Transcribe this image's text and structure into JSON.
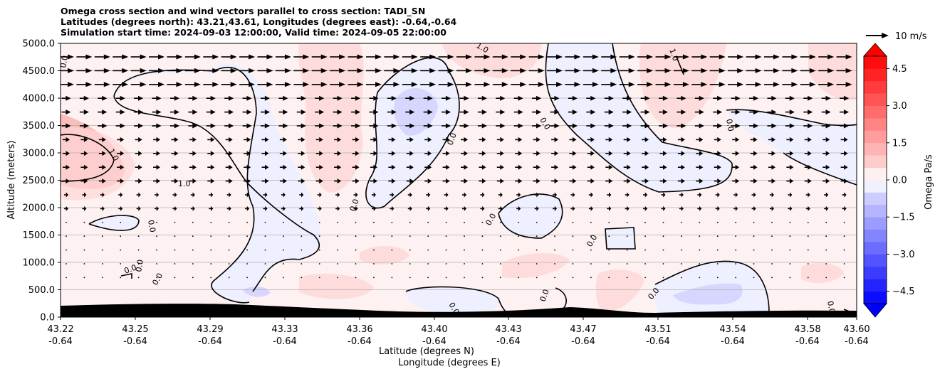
{
  "chart_data": {
    "type": "contour",
    "title_lines": [
      "Omega cross section and wind vectors parallel to cross section: TADI_SN",
      "Latitudes (degrees north): 43.21,43.61, Longitudes (degrees east): -0.64,-0.64",
      "Simulation start time: 2024-09-03 12:00:00, Valid time: 2024-09-05 22:00:00"
    ],
    "xlabel": "Latitude (degrees N)",
    "xlabel2": "Longitude (degrees E)",
    "ylabel": "Altitude (meters)",
    "x_ticks": [
      {
        "lat": "43.22",
        "lon": "-0.64"
      },
      {
        "lat": "43.25",
        "lon": "-0.64"
      },
      {
        "lat": "43.29",
        "lon": "-0.64"
      },
      {
        "lat": "43.33",
        "lon": "-0.64"
      },
      {
        "lat": "43.36",
        "lon": "-0.64"
      },
      {
        "lat": "43.40",
        "lon": "-0.64"
      },
      {
        "lat": "43.43",
        "lon": "-0.64"
      },
      {
        "lat": "43.47",
        "lon": "-0.64"
      },
      {
        "lat": "43.51",
        "lon": "-0.64"
      },
      {
        "lat": "43.54",
        "lon": "-0.64"
      },
      {
        "lat": "43.58",
        "lon": "-0.64"
      },
      {
        "lat": "43.60",
        "lon": "-0.64"
      }
    ],
    "y_ticks": [
      "0.0",
      "500.0",
      "1000.0",
      "1500.0",
      "2000.0",
      "2500.0",
      "3000.0",
      "3500.0",
      "4000.0",
      "4500.0",
      "5000.0"
    ],
    "ylim": [
      0,
      5000
    ],
    "grid": "horizontal",
    "colorbar": {
      "label": "Omega Pa/s",
      "ticks": [
        "−4.5",
        "−3.0",
        "−1.5",
        "0.0",
        "1.5",
        "3.0",
        "4.5"
      ],
      "range": [
        -5,
        5
      ],
      "colors": {
        "negative": "#0000ff",
        "positive": "#ff0000",
        "neutral": "#ffffff"
      }
    },
    "quiver_key": "10 m/s",
    "contour_labels": [
      "0.0",
      "0.0",
      "0.0",
      "0.0",
      "0.0",
      "0.0",
      "0.0",
      "0.0",
      "0.0",
      "0.0",
      "0.0",
      "0.0",
      "0.0",
      "0.0",
      "0.0",
      "1.0",
      "1.0",
      "1.0",
      "1.0"
    ],
    "terrain_color": "#000000"
  }
}
